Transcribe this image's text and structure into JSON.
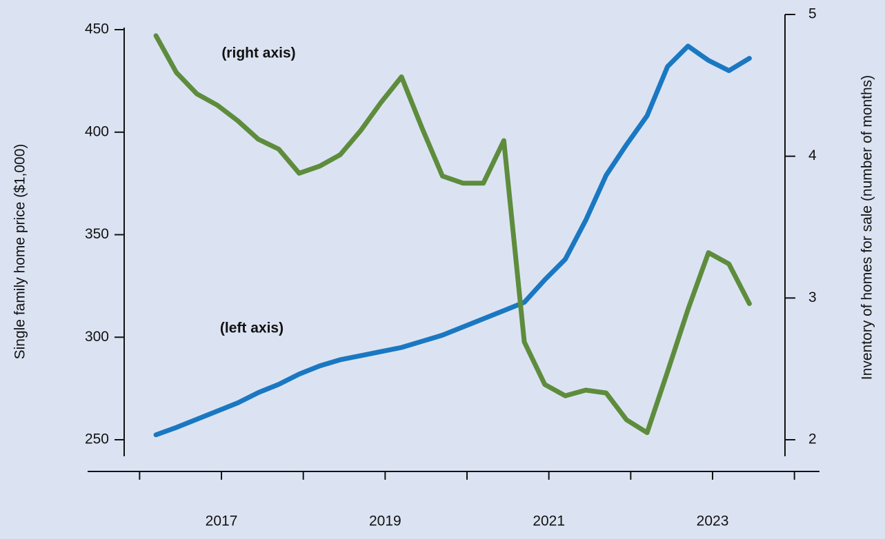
{
  "chart_data": {
    "type": "line",
    "ylabel": "Single family home price ($1,000)",
    "y2label": "Inventory of homes for sale (number of months)",
    "annotations": [
      {
        "text": "(right axis)",
        "color": "#5e8c3d"
      },
      {
        "text": "(left axis)",
        "color": "#1a78c2"
      }
    ],
    "x": [
      2016.2,
      2016.45,
      2016.7,
      2016.95,
      2017.2,
      2017.45,
      2017.7,
      2017.95,
      2018.2,
      2018.45,
      2018.7,
      2018.95,
      2019.2,
      2019.45,
      2019.7,
      2019.95,
      2020.2,
      2020.45,
      2020.7,
      2020.95,
      2021.2,
      2021.45,
      2021.7,
      2021.95,
      2022.2,
      2022.45,
      2022.7,
      2022.95,
      2023.2,
      2023.45
    ],
    "series": [
      {
        "name": "Single family home price",
        "color": "#1a78c2",
        "axis": "y",
        "values": [
          252.4,
          256,
          260,
          264,
          268,
          273,
          277,
          282,
          286,
          289,
          291,
          293,
          295,
          298,
          301,
          305,
          309,
          313,
          317,
          328,
          338,
          357,
          379,
          394,
          408,
          432,
          442,
          435,
          430,
          436
        ]
      },
      {
        "name": "Inventory of homes for sale",
        "color": "#5e8c3d",
        "axis": "y2",
        "values": [
          4.85,
          4.59,
          4.44,
          4.36,
          4.25,
          4.12,
          4.05,
          3.88,
          3.93,
          4.01,
          4.18,
          4.38,
          4.56,
          4.2,
          3.86,
          3.81,
          3.81,
          4.11,
          2.69,
          2.39,
          2.31,
          2.35,
          2.33,
          2.14,
          2.05,
          2.48,
          2.92,
          3.32,
          3.24,
          2.96
        ]
      }
    ],
    "xlim": [
      2015.365,
      2024.306
    ],
    "xticks": [
      2017,
      2019,
      2021,
      2023
    ],
    "xminor_ticks": [
      2016,
      2018,
      2020,
      2022,
      2024
    ],
    "ylim": [
      250,
      457.4
    ],
    "yticks": [
      250,
      300,
      350,
      400,
      450
    ],
    "y2lim": [
      2,
      5
    ],
    "y2ticks": [
      2,
      3,
      4,
      5
    ]
  }
}
